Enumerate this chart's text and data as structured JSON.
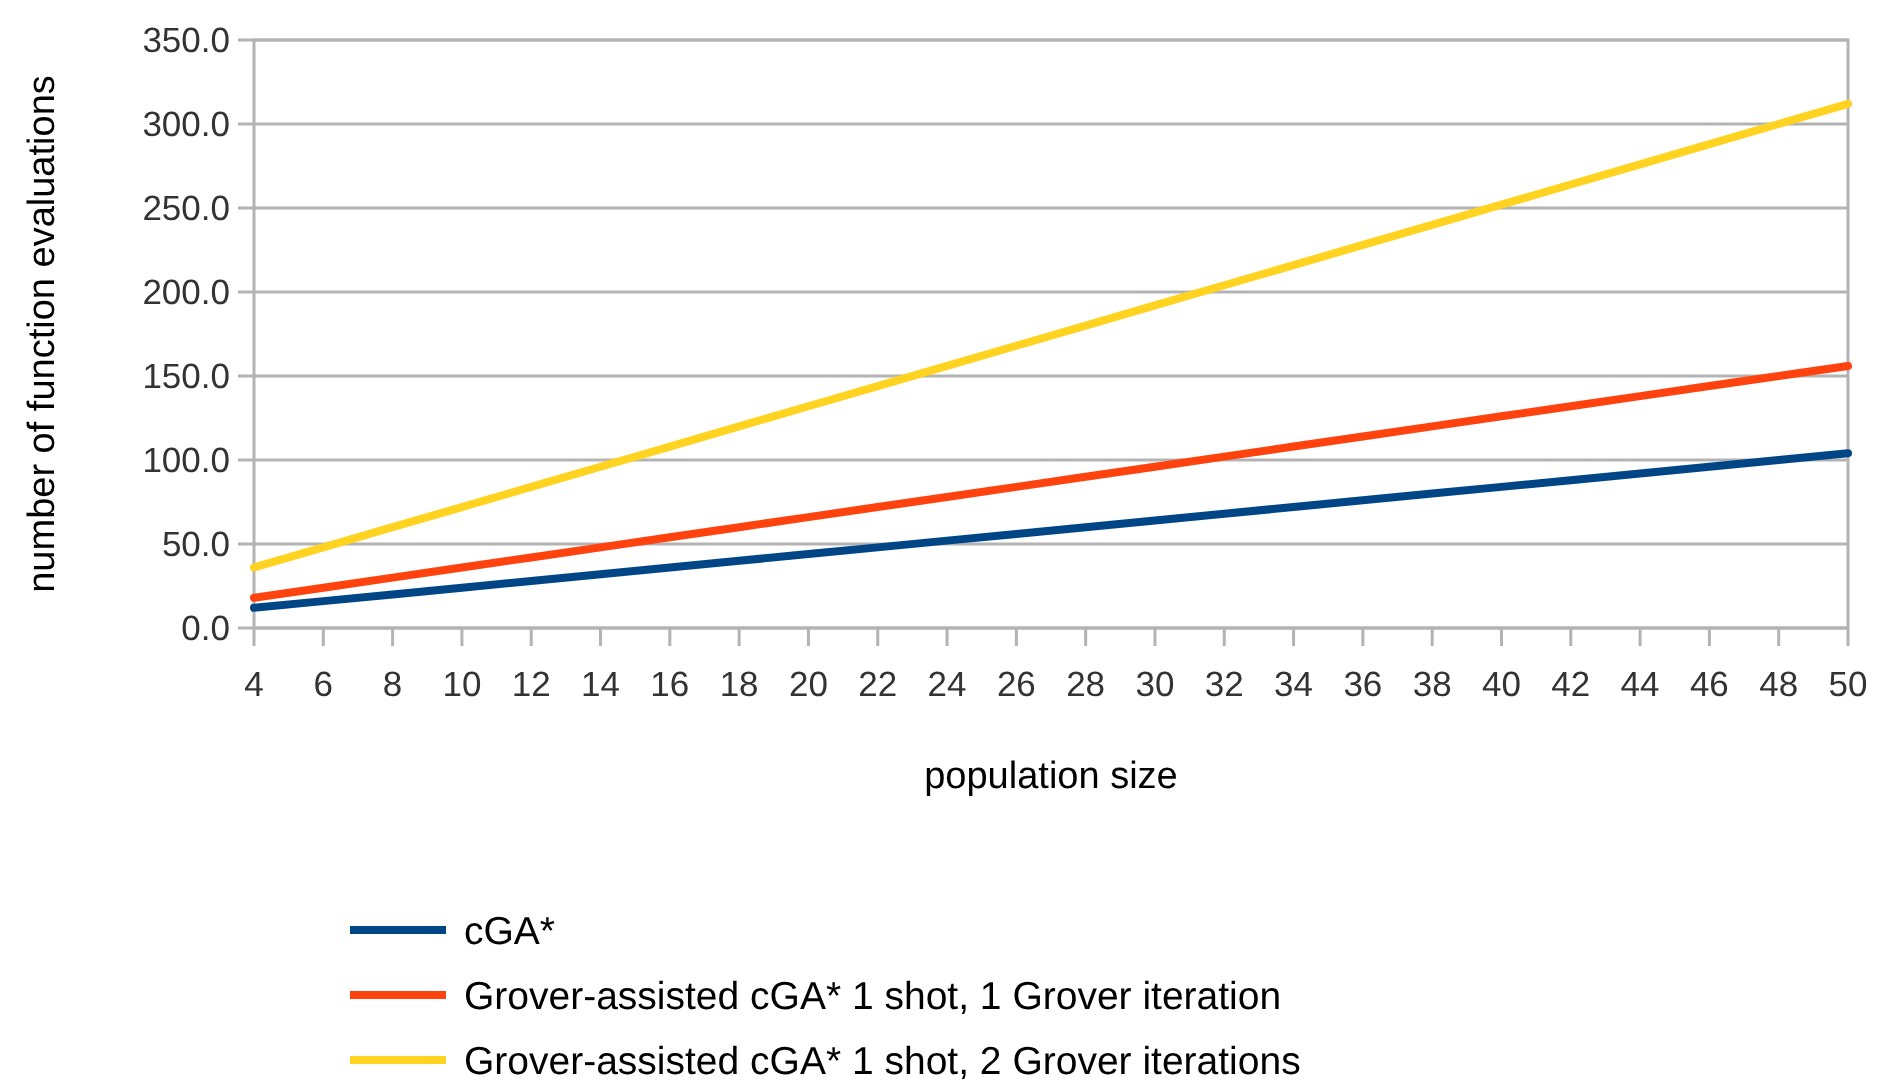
{
  "chart_data": {
    "type": "line",
    "xlabel": "population size",
    "ylabel": "number of function evaluations",
    "x": [
      4,
      6,
      8,
      10,
      12,
      14,
      16,
      18,
      20,
      22,
      24,
      26,
      28,
      30,
      32,
      34,
      36,
      38,
      40,
      42,
      44,
      46,
      48,
      50
    ],
    "series": [
      {
        "name": "cGA*",
        "color": "#004586",
        "values": [
          12,
          16,
          20,
          24,
          28,
          32,
          36,
          40,
          44,
          48,
          52,
          56,
          60,
          64,
          68,
          72,
          76,
          80,
          84,
          88,
          92,
          96,
          100,
          104
        ]
      },
      {
        "name": "Grover-assisted cGA* 1 shot, 1 Grover iteration",
        "color": "#ff420e",
        "values": [
          18,
          24,
          30,
          36,
          42,
          48,
          54,
          60,
          66,
          72,
          78,
          84,
          90,
          96,
          102,
          108,
          114,
          120,
          126,
          132,
          138,
          144,
          150,
          156
        ]
      },
      {
        "name": "Grover-assisted cGA* 1 shot, 2 Grover iterations",
        "color": "#ffd320",
        "values": [
          36,
          48,
          60,
          72,
          84,
          96,
          108,
          120,
          132,
          144,
          156,
          168,
          180,
          192,
          204,
          216,
          228,
          240,
          252,
          264,
          276,
          288,
          300,
          312
        ]
      }
    ],
    "xlim": [
      4,
      50
    ],
    "xticks": [
      4,
      6,
      8,
      10,
      12,
      14,
      16,
      18,
      20,
      22,
      24,
      26,
      28,
      30,
      32,
      34,
      36,
      38,
      40,
      42,
      44,
      46,
      48,
      50
    ],
    "ylim": [
      0,
      350
    ],
    "yticks": [
      {
        "value": 0,
        "label": "0.0"
      },
      {
        "value": 50,
        "label": "50.0"
      },
      {
        "value": 100,
        "label": "100.0"
      },
      {
        "value": 150,
        "label": "150.0"
      },
      {
        "value": 200,
        "label": "200.0"
      },
      {
        "value": 250,
        "label": "250.0"
      },
      {
        "value": 300,
        "label": "300.0"
      },
      {
        "value": 350,
        "label": "350.0"
      }
    ],
    "grid": "y",
    "legend": "bottom",
    "marker": "none",
    "line_style": "solid"
  }
}
